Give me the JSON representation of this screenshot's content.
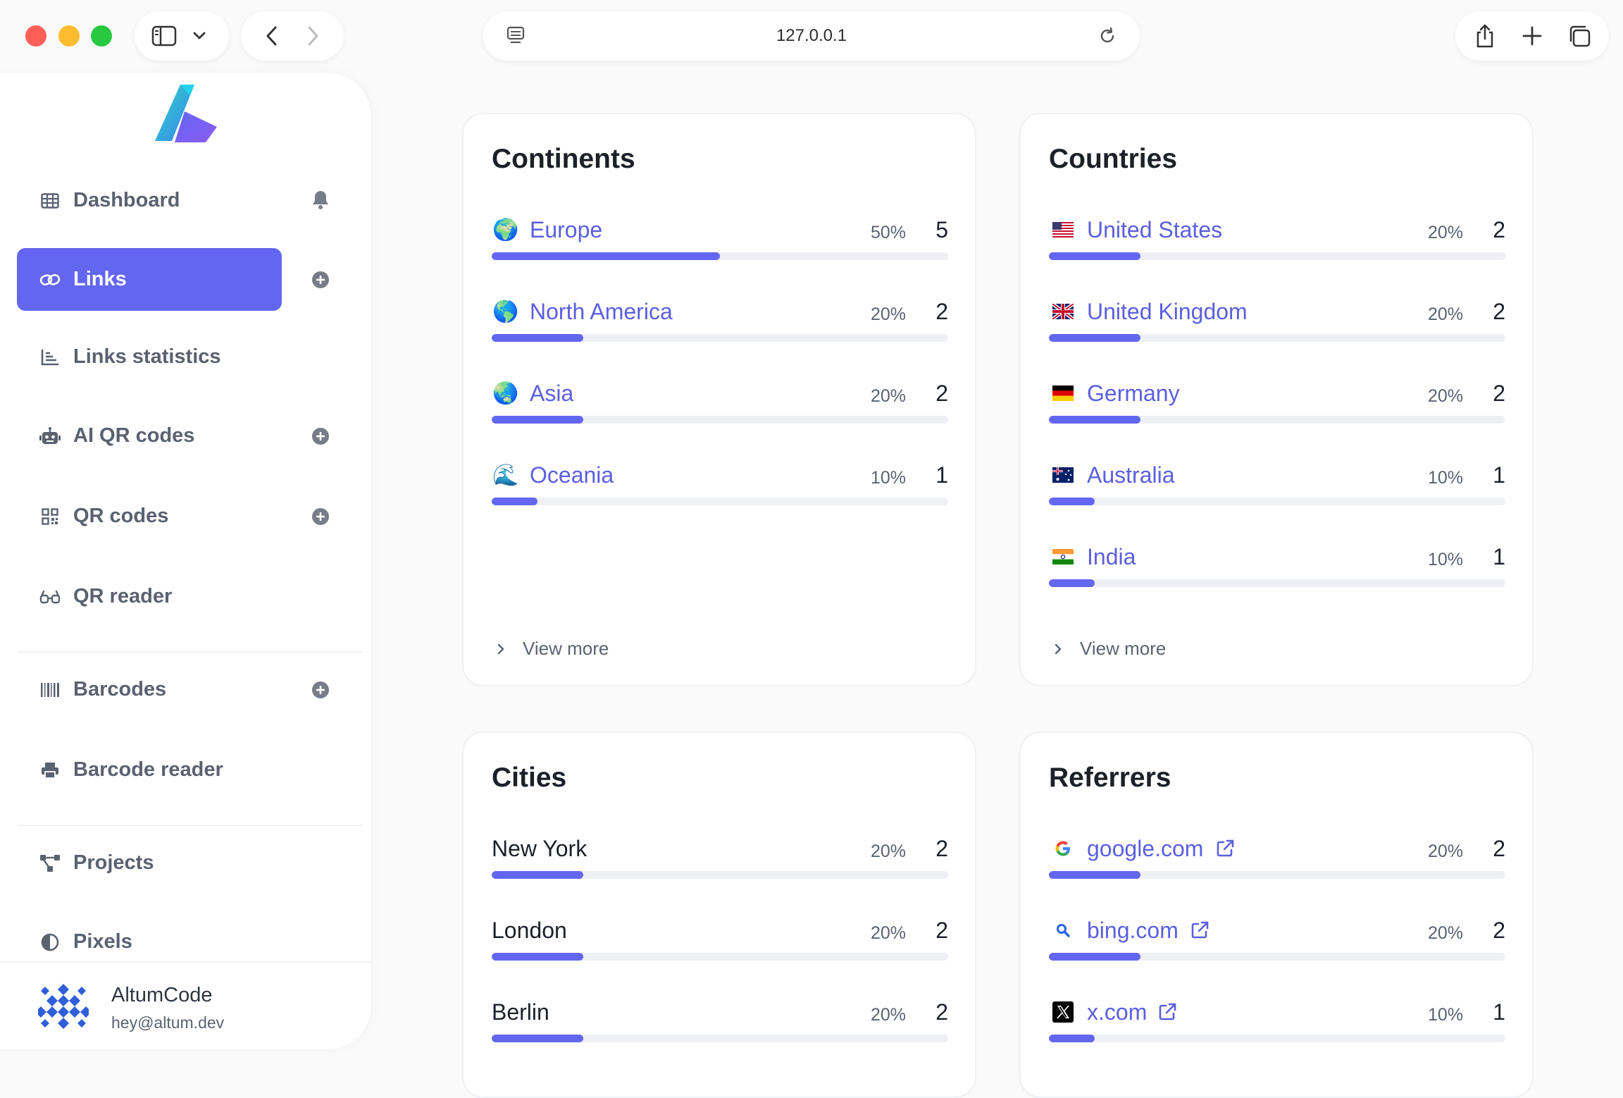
{
  "browser": {
    "url": "127.0.0.1"
  },
  "sidebar": {
    "items": [
      {
        "label": "Dashboard",
        "icon": "table-icon",
        "extra": "bell-icon",
        "active": false
      },
      {
        "label": "Links",
        "icon": "link-icon",
        "extra": "plus-circle-icon",
        "active": true
      },
      {
        "label": "Links statistics",
        "icon": "chart-icon",
        "extra": null,
        "active": false
      },
      {
        "label": "AI QR codes",
        "icon": "robot-icon",
        "extra": "plus-circle-icon",
        "active": false
      },
      {
        "label": "QR codes",
        "icon": "qr-icon",
        "extra": "plus-circle-icon",
        "active": false
      },
      {
        "label": "QR reader",
        "icon": "glasses-icon",
        "extra": null,
        "active": false
      },
      {
        "label": "Barcodes",
        "icon": "barcode-icon",
        "extra": "plus-circle-icon",
        "active": false
      },
      {
        "label": "Barcode reader",
        "icon": "printer-icon",
        "extra": null,
        "active": false
      },
      {
        "label": "Projects",
        "icon": "projects-icon",
        "extra": null,
        "active": false
      },
      {
        "label": "Pixels",
        "icon": "pixels-icon",
        "extra": null,
        "active": false
      }
    ],
    "user": {
      "name": "AltumCode",
      "email": "hey@altum.dev"
    }
  },
  "cards": {
    "continents": {
      "title": "Continents",
      "view_more": "View more",
      "rows": [
        {
          "label": "Europe",
          "icon": "🌍",
          "pct": "50%",
          "count": "5",
          "fill": 0.5
        },
        {
          "label": "North America",
          "icon": "🌎",
          "pct": "20%",
          "count": "2",
          "fill": 0.2
        },
        {
          "label": "Asia",
          "icon": "🌏",
          "pct": "20%",
          "count": "2",
          "fill": 0.2
        },
        {
          "label": "Oceania",
          "icon": "🌊",
          "pct": "10%",
          "count": "1",
          "fill": 0.1
        }
      ]
    },
    "countries": {
      "title": "Countries",
      "view_more": "View more",
      "rows": [
        {
          "label": "United States",
          "icon": "flag-us",
          "pct": "20%",
          "count": "2",
          "fill": 0.2
        },
        {
          "label": "United Kingdom",
          "icon": "flag-uk",
          "pct": "20%",
          "count": "2",
          "fill": 0.2
        },
        {
          "label": "Germany",
          "icon": "flag-de",
          "pct": "20%",
          "count": "2",
          "fill": 0.2
        },
        {
          "label": "Australia",
          "icon": "flag-au",
          "pct": "10%",
          "count": "1",
          "fill": 0.1
        },
        {
          "label": "India",
          "icon": "flag-in",
          "pct": "10%",
          "count": "1",
          "fill": 0.1
        }
      ]
    },
    "cities": {
      "title": "Cities",
      "rows": [
        {
          "label": "New York",
          "pct": "20%",
          "count": "2",
          "fill": 0.2
        },
        {
          "label": "London",
          "pct": "20%",
          "count": "2",
          "fill": 0.2
        },
        {
          "label": "Berlin",
          "pct": "20%",
          "count": "2",
          "fill": 0.2
        }
      ]
    },
    "referrers": {
      "title": "Referrers",
      "rows": [
        {
          "label": "google.com",
          "icon": "google-icon",
          "pct": "20%",
          "count": "2",
          "fill": 0.2
        },
        {
          "label": "bing.com",
          "icon": "bing-search-icon",
          "pct": "20%",
          "count": "2",
          "fill": 0.2
        },
        {
          "label": "x.com",
          "icon": "x-logo-icon",
          "pct": "10%",
          "count": "1",
          "fill": 0.1
        }
      ]
    }
  },
  "colors": {
    "accent": "#6366f1",
    "link": "#5b5fe0"
  }
}
